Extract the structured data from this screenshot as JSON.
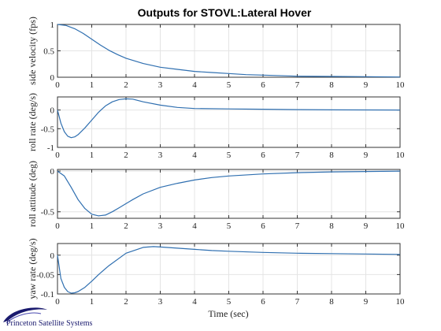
{
  "chart_data": {
    "title": "Outputs for STOVL:Lateral Hover",
    "xlabel": "Time (sec)",
    "panels": [
      {
        "type": "line",
        "ylabel": "side velocity (fps)",
        "xlim": [
          0,
          10
        ],
        "ylim": [
          0,
          1
        ],
        "yticks": [
          0,
          0.5,
          1
        ],
        "yticklabels": [
          "0",
          "0.5",
          "1"
        ],
        "xticks": [
          0,
          1,
          2,
          3,
          4,
          5,
          6,
          7,
          8,
          9,
          10
        ],
        "grid": true,
        "series": [
          {
            "color": "#2f6fb0",
            "x": [
              0,
              0.25,
              0.5,
              0.75,
              1,
              1.25,
              1.5,
              1.75,
              2,
              2.5,
              3,
              3.5,
              4,
              4.5,
              5,
              5.5,
              6,
              7,
              8,
              9,
              10
            ],
            "y": [
              1,
              0.98,
              0.92,
              0.83,
              0.72,
              0.61,
              0.51,
              0.43,
              0.36,
              0.26,
              0.19,
              0.15,
              0.11,
              0.09,
              0.07,
              0.05,
              0.04,
              0.02,
              0.015,
              0.01,
              0.005
            ]
          }
        ]
      },
      {
        "type": "line",
        "ylabel": "roll rate (deg/s)",
        "xlim": [
          0,
          10
        ],
        "ylim": [
          -1,
          0.35
        ],
        "yticks": [
          -1,
          -0.5,
          0
        ],
        "yticklabels": [
          "-1",
          "-0.5",
          "0"
        ],
        "xticks": [
          0,
          1,
          2,
          3,
          4,
          5,
          6,
          7,
          8,
          9,
          10
        ],
        "grid": true,
        "series": [
          {
            "color": "#2f6fb0",
            "x": [
              0,
              0.1,
              0.2,
              0.3,
              0.4,
              0.5,
              0.6,
              0.8,
              1,
              1.2,
              1.4,
              1.6,
              1.8,
              2,
              2.2,
              2.5,
              3,
              3.5,
              4,
              5,
              6,
              7,
              8,
              9,
              10
            ],
            "y": [
              0,
              -0.35,
              -0.58,
              -0.7,
              -0.74,
              -0.72,
              -0.66,
              -0.48,
              -0.27,
              -0.06,
              0.11,
              0.22,
              0.28,
              0.3,
              0.29,
              0.22,
              0.13,
              0.07,
              0.04,
              0.03,
              0.02,
              0.01,
              0.005,
              0.002,
              0
            ]
          }
        ]
      },
      {
        "type": "line",
        "ylabel": "roll attitude (deg)",
        "xlim": [
          0,
          10
        ],
        "ylim": [
          -0.58,
          0.02
        ],
        "yticks": [
          -0.5,
          0
        ],
        "yticklabels": [
          "-0.5",
          "0"
        ],
        "xticks": [
          0,
          1,
          2,
          3,
          4,
          5,
          6,
          7,
          8,
          9,
          10
        ],
        "grid": true,
        "series": [
          {
            "color": "#2f6fb0",
            "x": [
              0,
              0.2,
              0.4,
              0.6,
              0.8,
              1,
              1.2,
              1.4,
              1.6,
              1.8,
              2,
              2.2,
              2.5,
              3,
              3.5,
              4,
              4.5,
              5,
              6,
              7,
              8,
              9,
              10
            ],
            "y": [
              0,
              -0.06,
              -0.2,
              -0.35,
              -0.46,
              -0.53,
              -0.55,
              -0.54,
              -0.5,
              -0.45,
              -0.4,
              -0.35,
              -0.28,
              -0.2,
              -0.15,
              -0.11,
              -0.08,
              -0.06,
              -0.035,
              -0.02,
              -0.01,
              -0.005,
              0
            ]
          }
        ]
      },
      {
        "type": "line",
        "ylabel": "yaw rate (deg/s)",
        "xlim": [
          0,
          10
        ],
        "ylim": [
          -0.1,
          0.03
        ],
        "yticks": [
          -0.1,
          -0.05,
          0
        ],
        "yticklabels": [
          "-0.1",
          "-0.05",
          "0"
        ],
        "xticks": [
          0,
          1,
          2,
          3,
          4,
          5,
          6,
          7,
          8,
          9,
          10
        ],
        "grid": true,
        "series": [
          {
            "color": "#2f6fb0",
            "x": [
              0,
              0.1,
              0.2,
              0.3,
              0.4,
              0.5,
              0.6,
              0.8,
              1,
              1.2,
              1.5,
              2,
              2.5,
              2.8,
              3,
              3.5,
              4,
              4.5,
              5,
              6,
              7,
              8,
              9,
              10
            ],
            "y": [
              0,
              -0.06,
              -0.083,
              -0.094,
              -0.098,
              -0.097,
              -0.094,
              -0.083,
              -0.067,
              -0.05,
              -0.027,
              0.005,
              0.02,
              0.022,
              0.021,
              0.018,
              0.015,
              0.012,
              0.01,
              0.007,
              0.005,
              0.004,
              0.003,
              0.002
            ]
          }
        ]
      }
    ]
  },
  "logo": {
    "text": "Princeton Satellite Systems",
    "color": "#1a1a6e"
  }
}
